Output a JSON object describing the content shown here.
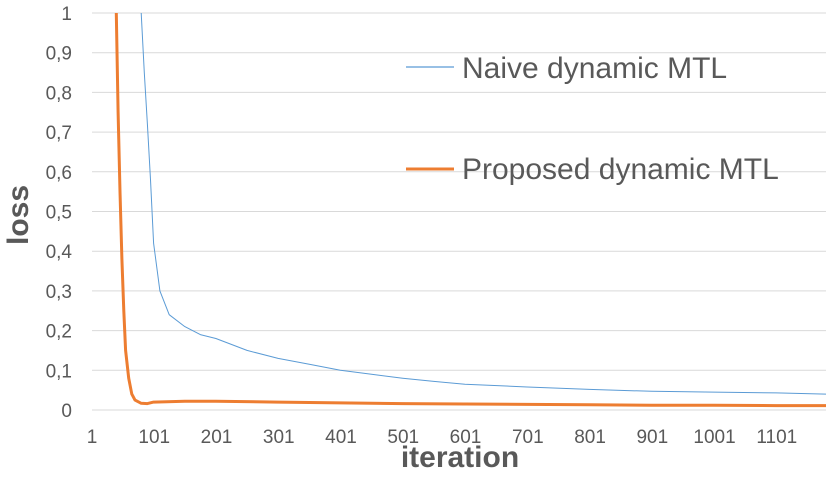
{
  "chart_data": {
    "type": "line",
    "title": "",
    "xlabel": "iteration",
    "ylabel": "loss",
    "xlim": [
      1,
      1180
    ],
    "ylim": [
      0,
      1
    ],
    "grid": true,
    "x_ticks": [
      "1",
      "101",
      "201",
      "301",
      "401",
      "501",
      "601",
      "701",
      "801",
      "901",
      "1001",
      "1101"
    ],
    "x_tick_values": [
      1,
      101,
      201,
      301,
      401,
      501,
      601,
      701,
      801,
      901,
      1001,
      1101
    ],
    "y_ticks": [
      "0",
      "0,1",
      "0,2",
      "0,3",
      "0,4",
      "0,5",
      "0,6",
      "0,7",
      "0,8",
      "0,9",
      "1"
    ],
    "y_tick_values": [
      0,
      0.1,
      0.2,
      0.3,
      0.4,
      0.5,
      0.6,
      0.7,
      0.8,
      0.9,
      1.0
    ],
    "legend_position": "right",
    "series": [
      {
        "name": "Naive dynamic MTL",
        "color": "#5b9bd5",
        "x": [
          80,
          85,
          90,
          95,
          100,
          110,
          125,
          150,
          175,
          200,
          250,
          300,
          350,
          400,
          450,
          500,
          550,
          600,
          700,
          800,
          900,
          1000,
          1100,
          1180
        ],
        "y": [
          1.0,
          0.85,
          0.72,
          0.58,
          0.42,
          0.3,
          0.24,
          0.21,
          0.19,
          0.18,
          0.15,
          0.13,
          0.115,
          0.1,
          0.09,
          0.08,
          0.072,
          0.065,
          0.058,
          0.052,
          0.047,
          0.045,
          0.043,
          0.04
        ]
      },
      {
        "name": "Proposed dynamic MTL",
        "color": "#ed7d31",
        "x": [
          40,
          43,
          46,
          49,
          52,
          55,
          60,
          65,
          70,
          80,
          90,
          100,
          150,
          200,
          300,
          400,
          500,
          600,
          700,
          800,
          900,
          1000,
          1100,
          1180
        ],
        "y": [
          1.0,
          0.75,
          0.55,
          0.38,
          0.25,
          0.15,
          0.08,
          0.04,
          0.025,
          0.017,
          0.016,
          0.02,
          0.022,
          0.022,
          0.02,
          0.018,
          0.016,
          0.015,
          0.014,
          0.013,
          0.012,
          0.012,
          0.011,
          0.011
        ]
      }
    ]
  }
}
